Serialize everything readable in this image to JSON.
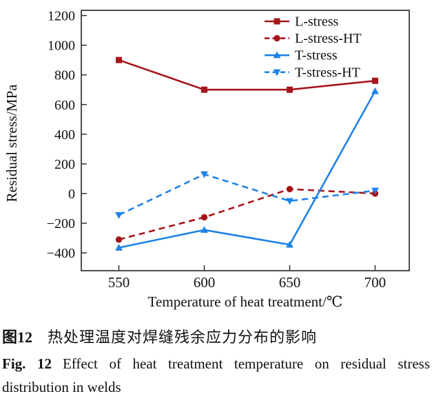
{
  "figure": {
    "caption_cn_label": "图12",
    "caption_cn_text": "热处理温度对焊缝残余应力分布的影响",
    "caption_en_label": "Fig. 12",
    "caption_en_text": "Effect of heat treatment temperature on residual stress distribution in welds"
  },
  "chart_data": {
    "type": "line",
    "title": "",
    "xlabel": "Temperature of heat treatment/℃",
    "ylabel": "Residual stress/MPa",
    "x": [
      550,
      600,
      650,
      700
    ],
    "series": [
      {
        "name": "L-stress",
        "color": "#a51419",
        "line": "solid",
        "marker": "square",
        "values": [
          900,
          700,
          700,
          760
        ]
      },
      {
        "name": "L-stress-HT",
        "color": "#a51419",
        "line": "dashed",
        "marker": "circle",
        "values": [
          -310,
          -160,
          30,
          0
        ]
      },
      {
        "name": "T-stress",
        "color": "#1e82e6",
        "line": "solid",
        "marker": "triangle-up",
        "values": [
          -365,
          -245,
          -345,
          690
        ]
      },
      {
        "name": "T-stress-HT",
        "color": "#1e82e6",
        "line": "dashed",
        "marker": "triangle-down",
        "values": [
          -145,
          130,
          -50,
          20
        ]
      }
    ],
    "x_ticks": [
      550,
      600,
      650,
      700
    ],
    "y_ticks": [
      -400,
      -200,
      0,
      200,
      400,
      600,
      800,
      1000,
      1200
    ],
    "xlim": [
      528,
      720
    ],
    "ylim": [
      -520,
      1235
    ],
    "grid": false,
    "legend_position": "top-right",
    "frame_color": "#2e2e2e",
    "background": "#ffffff"
  }
}
